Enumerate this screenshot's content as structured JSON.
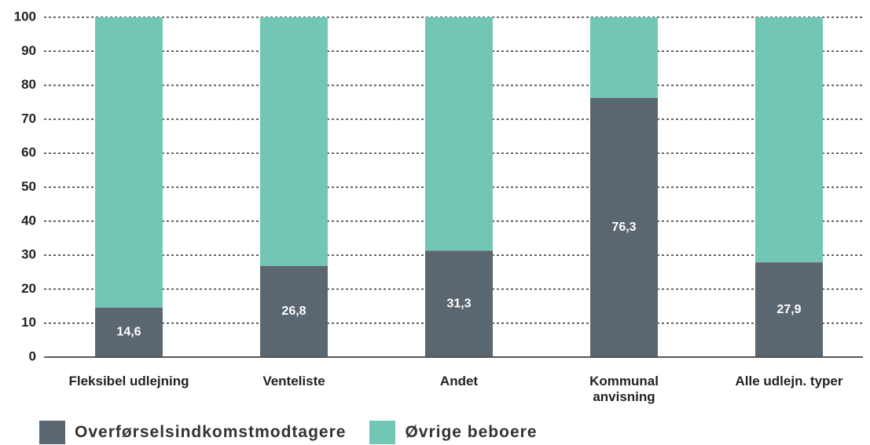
{
  "chart_data": {
    "type": "bar",
    "stacked": true,
    "categories": [
      "Fleksibel udlejning",
      "Venteliste",
      "Andet",
      "Kommunal anvisning",
      "Alle udlejn. typer"
    ],
    "series": [
      {
        "name": "Overførselsindkomstmodtagere",
        "color": "#5b6770",
        "values": [
          14.6,
          26.8,
          31.3,
          76.3,
          27.9
        ],
        "value_labels": [
          "14,6",
          "26,8",
          "31,3",
          "76,3",
          "27,9"
        ]
      },
      {
        "name": "Øvrige beboere",
        "color": "#72c7b4",
        "values": [
          85.4,
          73.2,
          68.7,
          23.7,
          72.1
        ]
      }
    ],
    "ylim": [
      0,
      100
    ],
    "yticks": [
      0,
      10,
      20,
      30,
      40,
      50,
      60,
      70,
      80,
      90,
      100
    ],
    "grid": true
  }
}
